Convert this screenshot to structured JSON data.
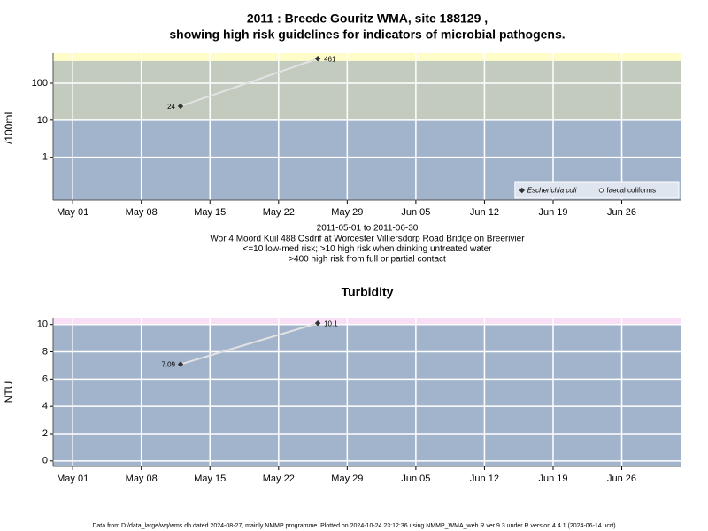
{
  "chart_data": [
    {
      "type": "line",
      "title": [
        "2011 : Breede Gouritz WMA, site 188129 ,",
        "showing high risk guidelines for indicators of microbial pathogens."
      ],
      "y_label": "/100mL",
      "notes": [
        "2011-05-01 to 2011-06-30",
        "Wor 4 Moord Kuil 488 Osdrif at Worcester Villiersdorp Road Bridge on Breerivier",
        "<=10 low-med risk; >10 high risk when drinking untreated water",
        ">400 high risk from full or partial contact"
      ],
      "x": [
        "May 12",
        "May 26"
      ],
      "xlim": [
        "Apr 29",
        "Jul 02"
      ],
      "xticks": [
        "May 01",
        "May 08",
        "May 15",
        "May 22",
        "May 29",
        "Jun 05",
        "Jun 12",
        "Jun 19",
        "Jun 26"
      ],
      "log_y": true,
      "ylim": [
        0.07,
        650
      ],
      "yticks": [
        1,
        10,
        100
      ],
      "thresholds": [
        10,
        400
      ],
      "band_colors": [
        "#a2b4cc",
        "#c3cbbf",
        "#fefcc9"
      ],
      "grid": true,
      "line_color": "#e2e2e2",
      "legend": "bottom right",
      "series": [
        {
          "name": "Escherichia coli",
          "color": "#333333",
          "marker": "diamond",
          "values": [
            24,
            461
          ]
        },
        {
          "name": "faecal coliforms",
          "color": "#333333",
          "marker": "circle",
          "values": [
            null,
            null
          ]
        }
      ]
    },
    {
      "type": "line",
      "title": [
        "Turbidity"
      ],
      "y_label": "NTU",
      "x": [
        "May 12",
        "May 26"
      ],
      "xlim": [
        "Apr 29",
        "Jul 02"
      ],
      "xticks": [
        "May 01",
        "May 08",
        "May 15",
        "May 22",
        "May 29",
        "Jun 05",
        "Jun 12",
        "Jun 19",
        "Jun 26"
      ],
      "log_y": false,
      "ylim": [
        -0.4,
        10.5
      ],
      "yticks": [
        0,
        2,
        4,
        6,
        8,
        10
      ],
      "thresholds": [
        10
      ],
      "band_colors": [
        "#a2b4cc",
        "#f9dff5"
      ],
      "grid": true,
      "line_color": "#e2e2e2",
      "series": [
        {
          "name": "Turbidity",
          "color": "#333333",
          "marker": "diamond",
          "values": [
            7.09,
            10.1
          ]
        }
      ]
    }
  ],
  "footer": "Data from D:/data_large/wq/wms.db dated 2024-08-27, mainly NMMP programme. Plotted on 2024-10-24 23:12:36 using NMMP_WMA_web.R ver 9.3 under R version 4.4.1 (2024-06-14 ucrt)"
}
